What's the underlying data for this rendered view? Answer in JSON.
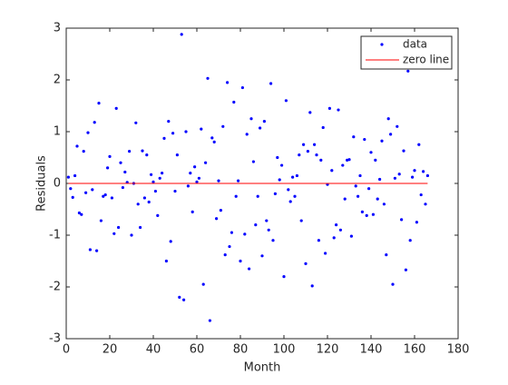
{
  "chart_data": {
    "type": "scatter",
    "xlabel": "Month",
    "ylabel": "Residuals",
    "xlim": [
      0,
      180
    ],
    "xticks": [
      0,
      20,
      40,
      60,
      80,
      100,
      120,
      140,
      160,
      180
    ],
    "ylim": [
      -3,
      3
    ],
    "yticks": [
      -3,
      -2,
      -1,
      0,
      1,
      2,
      3
    ],
    "legend": "northeast",
    "series": [
      {
        "name": "data",
        "color": "#0000ff",
        "mode": "markers",
        "x": [
          1,
          2,
          3,
          4,
          5,
          6,
          7,
          8,
          9,
          10,
          11,
          12,
          13,
          14,
          15,
          16,
          17,
          18,
          19,
          20,
          21,
          22,
          23,
          24,
          25,
          26,
          27,
          28,
          29,
          30,
          31,
          32,
          33,
          34,
          35,
          36,
          37,
          38,
          39,
          40,
          41,
          42,
          43,
          44,
          45,
          46,
          47,
          48,
          49,
          50,
          51,
          52,
          53,
          54,
          55,
          56,
          57,
          58,
          59,
          60,
          61,
          62,
          63,
          64,
          65,
          66,
          67,
          68,
          69,
          70,
          71,
          72,
          73,
          74,
          75,
          76,
          77,
          78,
          79,
          80,
          81,
          82,
          83,
          84,
          85,
          86,
          87,
          88,
          89,
          90,
          91,
          92,
          93,
          94,
          95,
          96,
          97,
          98,
          99,
          100,
          101,
          102,
          103,
          104,
          105,
          106,
          107,
          108,
          109,
          110,
          111,
          112,
          113,
          114,
          115,
          116,
          117,
          118,
          119,
          120,
          121,
          122,
          123,
          124,
          125,
          126,
          127,
          128,
          129,
          130,
          131,
          132,
          133,
          134,
          135,
          136,
          137,
          138,
          139,
          140,
          141,
          142,
          143,
          144,
          145,
          146,
          147,
          148,
          149,
          150,
          151,
          152,
          153,
          154,
          155,
          156,
          157,
          158,
          159,
          160,
          161,
          162,
          163,
          164,
          165,
          166
        ],
        "values": [
          0.12,
          -0.1,
          -0.27,
          0.15,
          0.72,
          -0.57,
          -0.6,
          0.62,
          -0.18,
          0.98,
          -1.28,
          -0.12,
          1.18,
          -1.3,
          1.55,
          -0.72,
          -0.25,
          -0.22,
          0.3,
          0.52,
          -0.28,
          -0.97,
          1.45,
          -0.85,
          0.4,
          -0.08,
          0.22,
          0.02,
          0.62,
          -1.0,
          0,
          1.17,
          -0.4,
          -0.85,
          0.63,
          -0.28,
          0.55,
          -0.36,
          0.17,
          0.03,
          -0.15,
          -0.62,
          0.1,
          0.2,
          0.87,
          -1.5,
          1.2,
          -1.12,
          0.97,
          -0.15,
          0.55,
          -2.2,
          2.88,
          -2.25,
          1.0,
          -0.05,
          0.2,
          -0.55,
          0.32,
          0.03,
          0.1,
          1.05,
          -1.95,
          0.4,
          2.03,
          -2.65,
          0.88,
          0.8,
          -0.68,
          0.05,
          -0.52,
          1.1,
          -1.38,
          1.95,
          -1.22,
          -0.95,
          1.57,
          -0.25,
          0.05,
          -1.5,
          1.85,
          -0.98,
          0.95,
          -1.65,
          1.25,
          0.42,
          -0.8,
          -0.25,
          1.07,
          -1.4,
          1.2,
          -0.72,
          -0.9,
          1.93,
          -1.1,
          -0.2,
          0.5,
          0.07,
          0.35,
          -1.8,
          1.6,
          -0.12,
          -0.35,
          0.12,
          -0.25,
          0.15,
          0.55,
          -0.72,
          0.75,
          -1.55,
          0.62,
          1.37,
          -1.98,
          0.75,
          0.55,
          -1.1,
          0.45,
          1.08,
          -1.35,
          -0.02,
          1.45,
          0.25,
          -1.05,
          -0.8,
          1.42,
          -0.9,
          0.35,
          -0.3,
          0.45,
          0.46,
          -1.02,
          0.9,
          -0.05,
          -0.25,
          0.15,
          -0.55,
          0.85,
          -0.62,
          -0.1,
          0.6,
          -0.6,
          0.45,
          -0.3,
          0.08,
          0.82,
          -0.4,
          -1.38,
          1.25,
          0.95,
          -1.95,
          0.1,
          1.1,
          0.18,
          -0.7,
          0.63,
          -1.67,
          2.17,
          -1.1,
          0.12,
          0.25,
          -0.75,
          0.75,
          -0.22,
          0.23,
          -0.4,
          0.15
        ]
      },
      {
        "name": "zero line",
        "color": "#ff0000",
        "mode": "line",
        "x": [
          1,
          166
        ],
        "values": [
          0,
          0
        ]
      }
    ]
  }
}
